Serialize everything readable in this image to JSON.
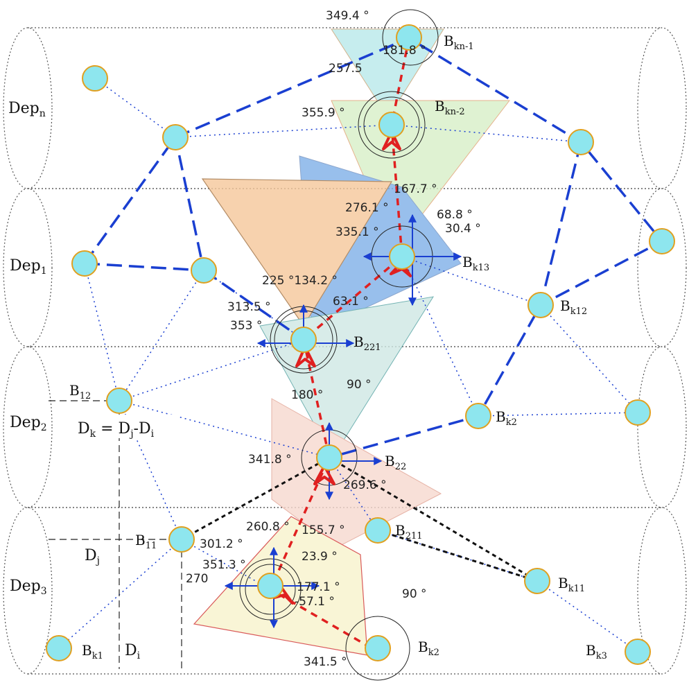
{
  "layers": [
    {
      "key": "n",
      "label": "Dep",
      "sub": "n"
    },
    {
      "key": "1",
      "label": "Dep",
      "sub": "1"
    },
    {
      "key": "2",
      "label": "Dep",
      "sub": "2"
    },
    {
      "key": "3",
      "label": "Dep",
      "sub": "3"
    }
  ],
  "node_labels": [
    {
      "id": "bkn1",
      "label": "B",
      "sub": "kn-1"
    },
    {
      "id": "bkn2",
      "label": "B",
      "sub": "kn-2"
    },
    {
      "id": "bk13",
      "label": "B",
      "sub": "k13"
    },
    {
      "id": "bk12",
      "label": "B",
      "sub": "k12"
    },
    {
      "id": "b221",
      "label": "B",
      "sub": "221"
    },
    {
      "id": "b12",
      "label": "B",
      "sub": "12"
    },
    {
      "id": "bk2a",
      "label": "B",
      "sub": "k2"
    },
    {
      "id": "b22",
      "label": "B",
      "sub": "22"
    },
    {
      "id": "b11",
      "label": "B",
      "sub": "11"
    },
    {
      "id": "b211",
      "label": "B",
      "sub": "211"
    },
    {
      "id": "bk11",
      "label": "B",
      "sub": "k11"
    },
    {
      "id": "bk1",
      "label": "B",
      "sub": "k1"
    },
    {
      "id": "bk2b",
      "label": "B",
      "sub": "k2"
    },
    {
      "id": "bk3",
      "label": "B",
      "sub": "k3"
    }
  ],
  "depth_labels": [
    {
      "id": "dk",
      "text": "D",
      "sub": "k",
      "rest": " = D",
      "sub2": "j",
      "rest2": "-D",
      "sub3": "i"
    },
    {
      "id": "dj",
      "text": "D",
      "sub": "j"
    },
    {
      "id": "di",
      "text": "D",
      "sub": "i"
    }
  ],
  "angles": [
    {
      "id": "a1",
      "text": "349.4 °"
    },
    {
      "id": "a2",
      "text": "181.8 °"
    },
    {
      "id": "a3",
      "text": "257.5"
    },
    {
      "id": "a4",
      "text": "355.9 °"
    },
    {
      "id": "a5",
      "text": "167.7 °"
    },
    {
      "id": "a6",
      "text": "276.1 °"
    },
    {
      "id": "a7",
      "text": "68.8 °"
    },
    {
      "id": "a8",
      "text": "335.1 °"
    },
    {
      "id": "a9",
      "text": "30.4 °"
    },
    {
      "id": "a10",
      "text": "225 °134.2 °"
    },
    {
      "id": "a11",
      "text": "313.5 °"
    },
    {
      "id": "a12",
      "text": "63.1 °"
    },
    {
      "id": "a13",
      "text": "353 °"
    },
    {
      "id": "a14",
      "text": "180 °"
    },
    {
      "id": "a15",
      "text": "90 °"
    },
    {
      "id": "a16",
      "text": "341.8 °"
    },
    {
      "id": "a17",
      "text": "269.6 °"
    },
    {
      "id": "a18",
      "text": "260.8 °"
    },
    {
      "id": "a19",
      "text": "155.7 °"
    },
    {
      "id": "a20",
      "text": "301.2 °"
    },
    {
      "id": "a21",
      "text": "351.3 °"
    },
    {
      "id": "a22",
      "text": "23.9 °"
    },
    {
      "id": "a23",
      "text": "270"
    },
    {
      "id": "a24",
      "text": "177.1 °"
    },
    {
      "id": "a25",
      "text": "-57.1 °"
    },
    {
      "id": "a26",
      "text": "90 °"
    },
    {
      "id": "a27",
      "text": "341.5 °"
    }
  ],
  "colors": {
    "node_fill": "#8ee6ee",
    "node_stroke": "#e0a020",
    "route_blue": "#1a3fd1",
    "route_red": "#e02020",
    "route_black": "#111111",
    "sector_orange": "#f6c79a",
    "sector_green": "#d8f0c8",
    "sector_blue": "#7fb0e8",
    "sector_cyan": "#cfe8e4",
    "sector_pink": "#f7d9cf",
    "sector_yellow": "#f8f3cc"
  }
}
